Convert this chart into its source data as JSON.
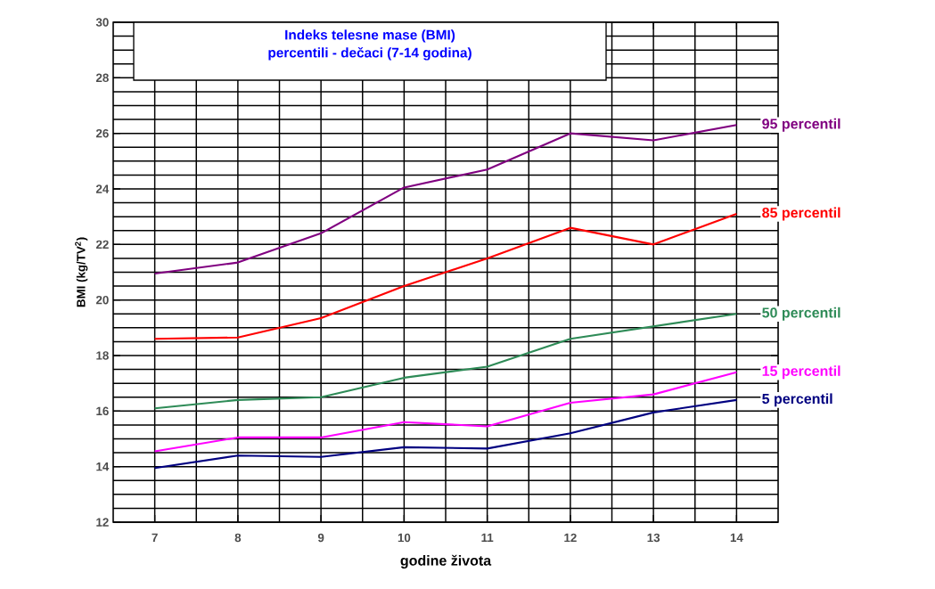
{
  "chart_data": {
    "type": "line",
    "title": "Indeks telesne mase (BMI)",
    "subtitle": "percentili - dečaci (7-14 godina)",
    "xlabel": "godine života",
    "ylabel": "BMI (kg/TV$^{2}$)",
    "x": [
      7,
      8,
      9,
      10,
      11,
      12,
      13,
      14
    ],
    "xlim": [
      6.5,
      14.5
    ],
    "xticks": [
      7,
      8,
      9,
      10,
      11,
      12,
      13,
      14
    ],
    "ylim": [
      12,
      30
    ],
    "yticks": [
      12,
      14,
      16,
      18,
      20,
      22,
      24,
      26,
      28,
      30
    ],
    "grid": true,
    "legend": false,
    "marker": "none",
    "line_style": "solid",
    "series": [
      {
        "name": "95 percentil",
        "color": "#800080",
        "values": [
          20.95,
          21.35,
          22.4,
          24.05,
          24.7,
          26.0,
          25.75,
          26.3
        ]
      },
      {
        "name": "85 percentil",
        "color": "#ff0000",
        "values": [
          18.6,
          18.65,
          19.35,
          20.5,
          21.5,
          22.6,
          22.0,
          23.1
        ]
      },
      {
        "name": "50 percentil",
        "color": "#2e8b57",
        "values": [
          16.1,
          16.4,
          16.5,
          17.2,
          17.6,
          18.6,
          19.05,
          19.5
        ]
      },
      {
        "name": "15 percentil",
        "color": "#ff00ff",
        "values": [
          14.55,
          15.05,
          15.05,
          15.6,
          15.45,
          16.3,
          16.6,
          17.4
        ]
      },
      {
        "name": "5 percentil",
        "color": "#000080",
        "values": [
          13.95,
          14.4,
          14.35,
          14.7,
          14.65,
          15.2,
          15.95,
          16.4
        ]
      }
    ]
  }
}
